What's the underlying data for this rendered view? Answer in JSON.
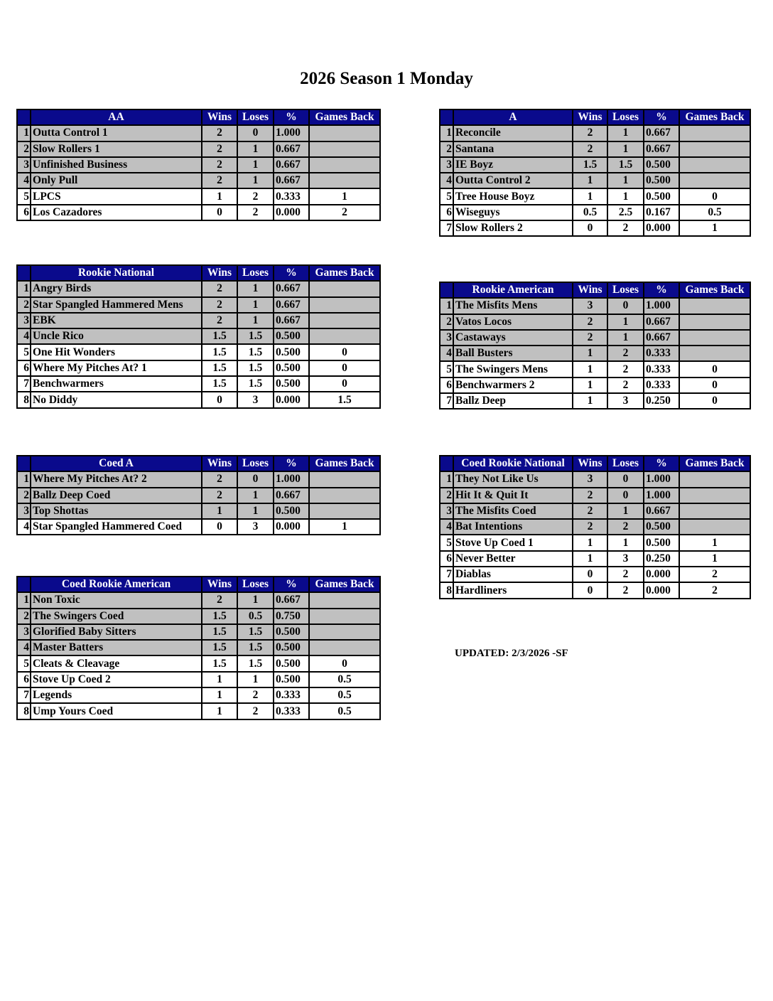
{
  "title": "2026 Season 1 Monday",
  "columns": [
    "Wins",
    "Loses",
    "%",
    "Games Back"
  ],
  "updated": "UPDATED: 2/3/2026 -SF",
  "tables": [
    {
      "division": "AA",
      "highlight_rows": 4,
      "rows": [
        [
          "1",
          "Outta Control 1",
          "2",
          "0",
          "1.000",
          ""
        ],
        [
          "2",
          "Slow Rollers 1",
          "2",
          "1",
          "0.667",
          ""
        ],
        [
          "3",
          "Unfinished Business",
          "2",
          "1",
          "0.667",
          ""
        ],
        [
          "4",
          "Only Pull",
          "2",
          "1",
          "0.667",
          ""
        ],
        [
          "5",
          "LPCS",
          "1",
          "2",
          "0.333",
          "1"
        ],
        [
          "6",
          "Los Cazadores",
          "0",
          "2",
          "0.000",
          "2"
        ]
      ]
    },
    {
      "division": "A",
      "highlight_rows": 4,
      "rows": [
        [
          "1",
          "Reconcile",
          "2",
          "1",
          "0.667",
          ""
        ],
        [
          "2",
          "Santana",
          "2",
          "1",
          "0.667",
          ""
        ],
        [
          "3",
          "IE Boyz",
          "1.5",
          "1.5",
          "0.500",
          ""
        ],
        [
          "4",
          "Outta Control 2",
          "1",
          "1",
          "0.500",
          ""
        ],
        [
          "5",
          "Tree House Boyz",
          "1",
          "1",
          "0.500",
          "0"
        ],
        [
          "6",
          "Wiseguys",
          "0.5",
          "2.5",
          "0.167",
          "0.5"
        ],
        [
          "7",
          "Slow Rollers 2",
          "0",
          "2",
          "0.000",
          "1"
        ]
      ]
    },
    {
      "division": "Rookie National",
      "highlight_rows": 4,
      "rows": [
        [
          "1",
          "Angry Birds",
          "2",
          "1",
          "0.667",
          ""
        ],
        [
          "2",
          "Star Spangled Hammered Mens",
          "2",
          "1",
          "0.667",
          ""
        ],
        [
          "3",
          "EBK",
          "2",
          "1",
          "0.667",
          ""
        ],
        [
          "4",
          "Uncle Rico",
          "1.5",
          "1.5",
          "0.500",
          ""
        ],
        [
          "5",
          "One Hit Wonders",
          "1.5",
          "1.5",
          "0.500",
          "0"
        ],
        [
          "6",
          "Where My Pitches At? 1",
          "1.5",
          "1.5",
          "0.500",
          "0"
        ],
        [
          "7",
          "Benchwarmers",
          "1.5",
          "1.5",
          "0.500",
          "0"
        ],
        [
          "8",
          "No Diddy",
          "0",
          "3",
          "0.000",
          "1.5"
        ]
      ]
    },
    {
      "division": "Rookie American",
      "highlight_rows": 4,
      "rows": [
        [
          "1",
          "The Misfits Mens",
          "3",
          "0",
          "1.000",
          ""
        ],
        [
          "2",
          "Vatos Locos",
          "2",
          "1",
          "0.667",
          ""
        ],
        [
          "3",
          "Castaways",
          "2",
          "1",
          "0.667",
          ""
        ],
        [
          "4",
          "Ball Busters",
          "1",
          "2",
          "0.333",
          ""
        ],
        [
          "5",
          "The Swingers Mens",
          "1",
          "2",
          "0.333",
          "0"
        ],
        [
          "6",
          "Benchwarmers 2",
          "1",
          "2",
          "0.333",
          "0"
        ],
        [
          "7",
          "Ballz Deep",
          "1",
          "3",
          "0.250",
          "0"
        ]
      ]
    },
    {
      "division": "Coed A",
      "highlight_rows": 3,
      "rows": [
        [
          "1",
          "Where My Pitches At? 2",
          "2",
          "0",
          "1.000",
          ""
        ],
        [
          "2",
          "Ballz Deep Coed",
          "2",
          "1",
          "0.667",
          ""
        ],
        [
          "3",
          "Top Shottas",
          "1",
          "1",
          "0.500",
          ""
        ],
        [
          "4",
          "Star Spangled Hammered Coed",
          "0",
          "3",
          "0.000",
          "1"
        ]
      ]
    },
    {
      "division": "Coed Rookie National",
      "highlight_rows": 4,
      "rows": [
        [
          "1",
          "They Not Like Us",
          "3",
          "0",
          "1.000",
          ""
        ],
        [
          "2",
          "Hit It & Quit It",
          "2",
          "0",
          "1.000",
          ""
        ],
        [
          "3",
          "The Misfits Coed",
          "2",
          "1",
          "0.667",
          ""
        ],
        [
          "4",
          "Bat Intentions",
          "2",
          "2",
          "0.500",
          ""
        ],
        [
          "5",
          "Stove Up Coed 1",
          "1",
          "1",
          "0.500",
          "1"
        ],
        [
          "6",
          "Never Better",
          "1",
          "3",
          "0.250",
          "1"
        ],
        [
          "7",
          "Diablas",
          "0",
          "2",
          "0.000",
          "2"
        ],
        [
          "8",
          "Hardliners",
          "0",
          "2",
          "0.000",
          "2"
        ]
      ]
    },
    {
      "division": "Coed Rookie American",
      "highlight_rows": 4,
      "rows": [
        [
          "1",
          "Non Toxic",
          "2",
          "1",
          "0.667",
          ""
        ],
        [
          "2",
          "The Swingers Coed",
          "1.5",
          "0.5",
          "0.750",
          ""
        ],
        [
          "3",
          "Glorified Baby Sitters",
          "1.5",
          "1.5",
          "0.500",
          ""
        ],
        [
          "4",
          "Master Batters",
          "1.5",
          "1.5",
          "0.500",
          ""
        ],
        [
          "5",
          "Cleats & Cleavage",
          "1.5",
          "1.5",
          "0.500",
          "0"
        ],
        [
          "6",
          "Stove Up Coed 2",
          "1",
          "1",
          "0.500",
          "0.5"
        ],
        [
          "7",
          "Legends",
          "1",
          "2",
          "0.333",
          "0.5"
        ],
        [
          "8",
          "Ump Yours Coed",
          "1",
          "2",
          "0.333",
          "0.5"
        ]
      ]
    }
  ]
}
